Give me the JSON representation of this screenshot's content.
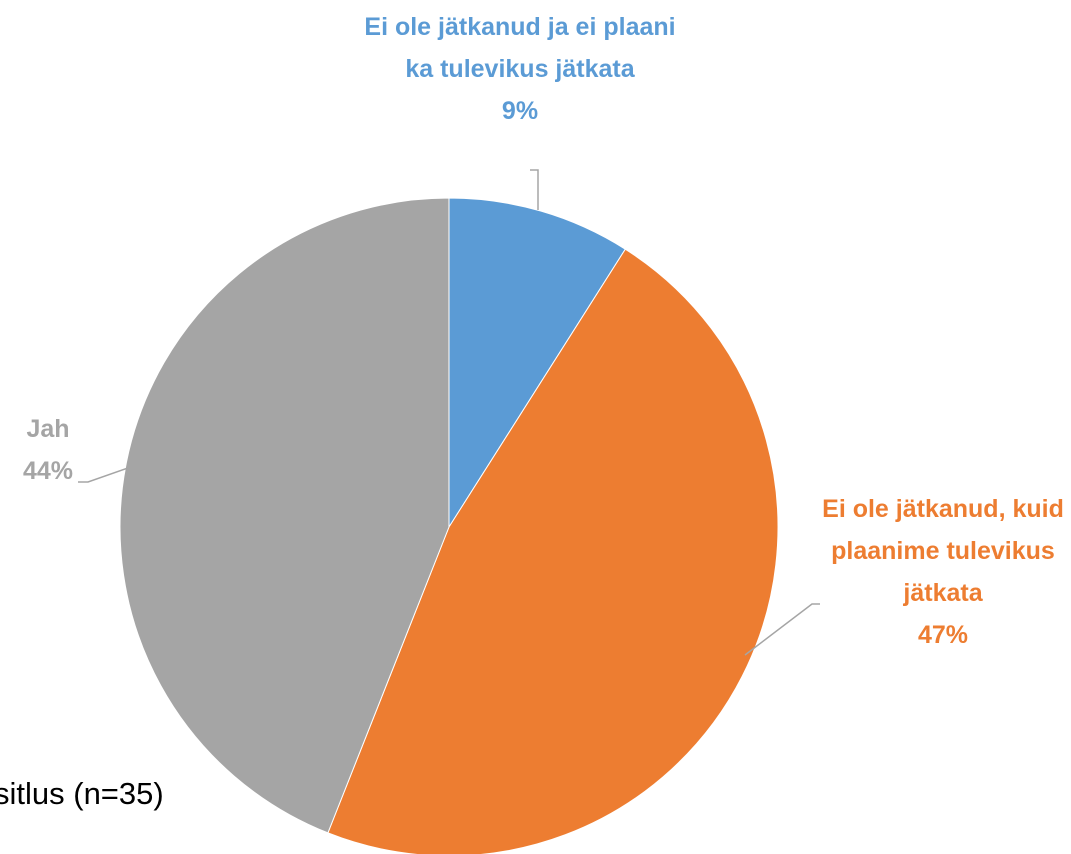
{
  "chart_data": {
    "type": "pie",
    "categories": [
      "Ei ole jätkanud ja ei plaani ka tulevikus jätkata",
      "Ei ole jätkanud, kuid plaanime tulevikus jätkata",
      "Jah"
    ],
    "values": [
      9,
      47,
      44
    ],
    "value_labels": [
      "9%",
      "47%",
      "44%"
    ],
    "colors": [
      "#5b9bd5",
      "#ed7d31",
      "#a5a5a5"
    ],
    "annotation": "sitlus (n=35)"
  }
}
